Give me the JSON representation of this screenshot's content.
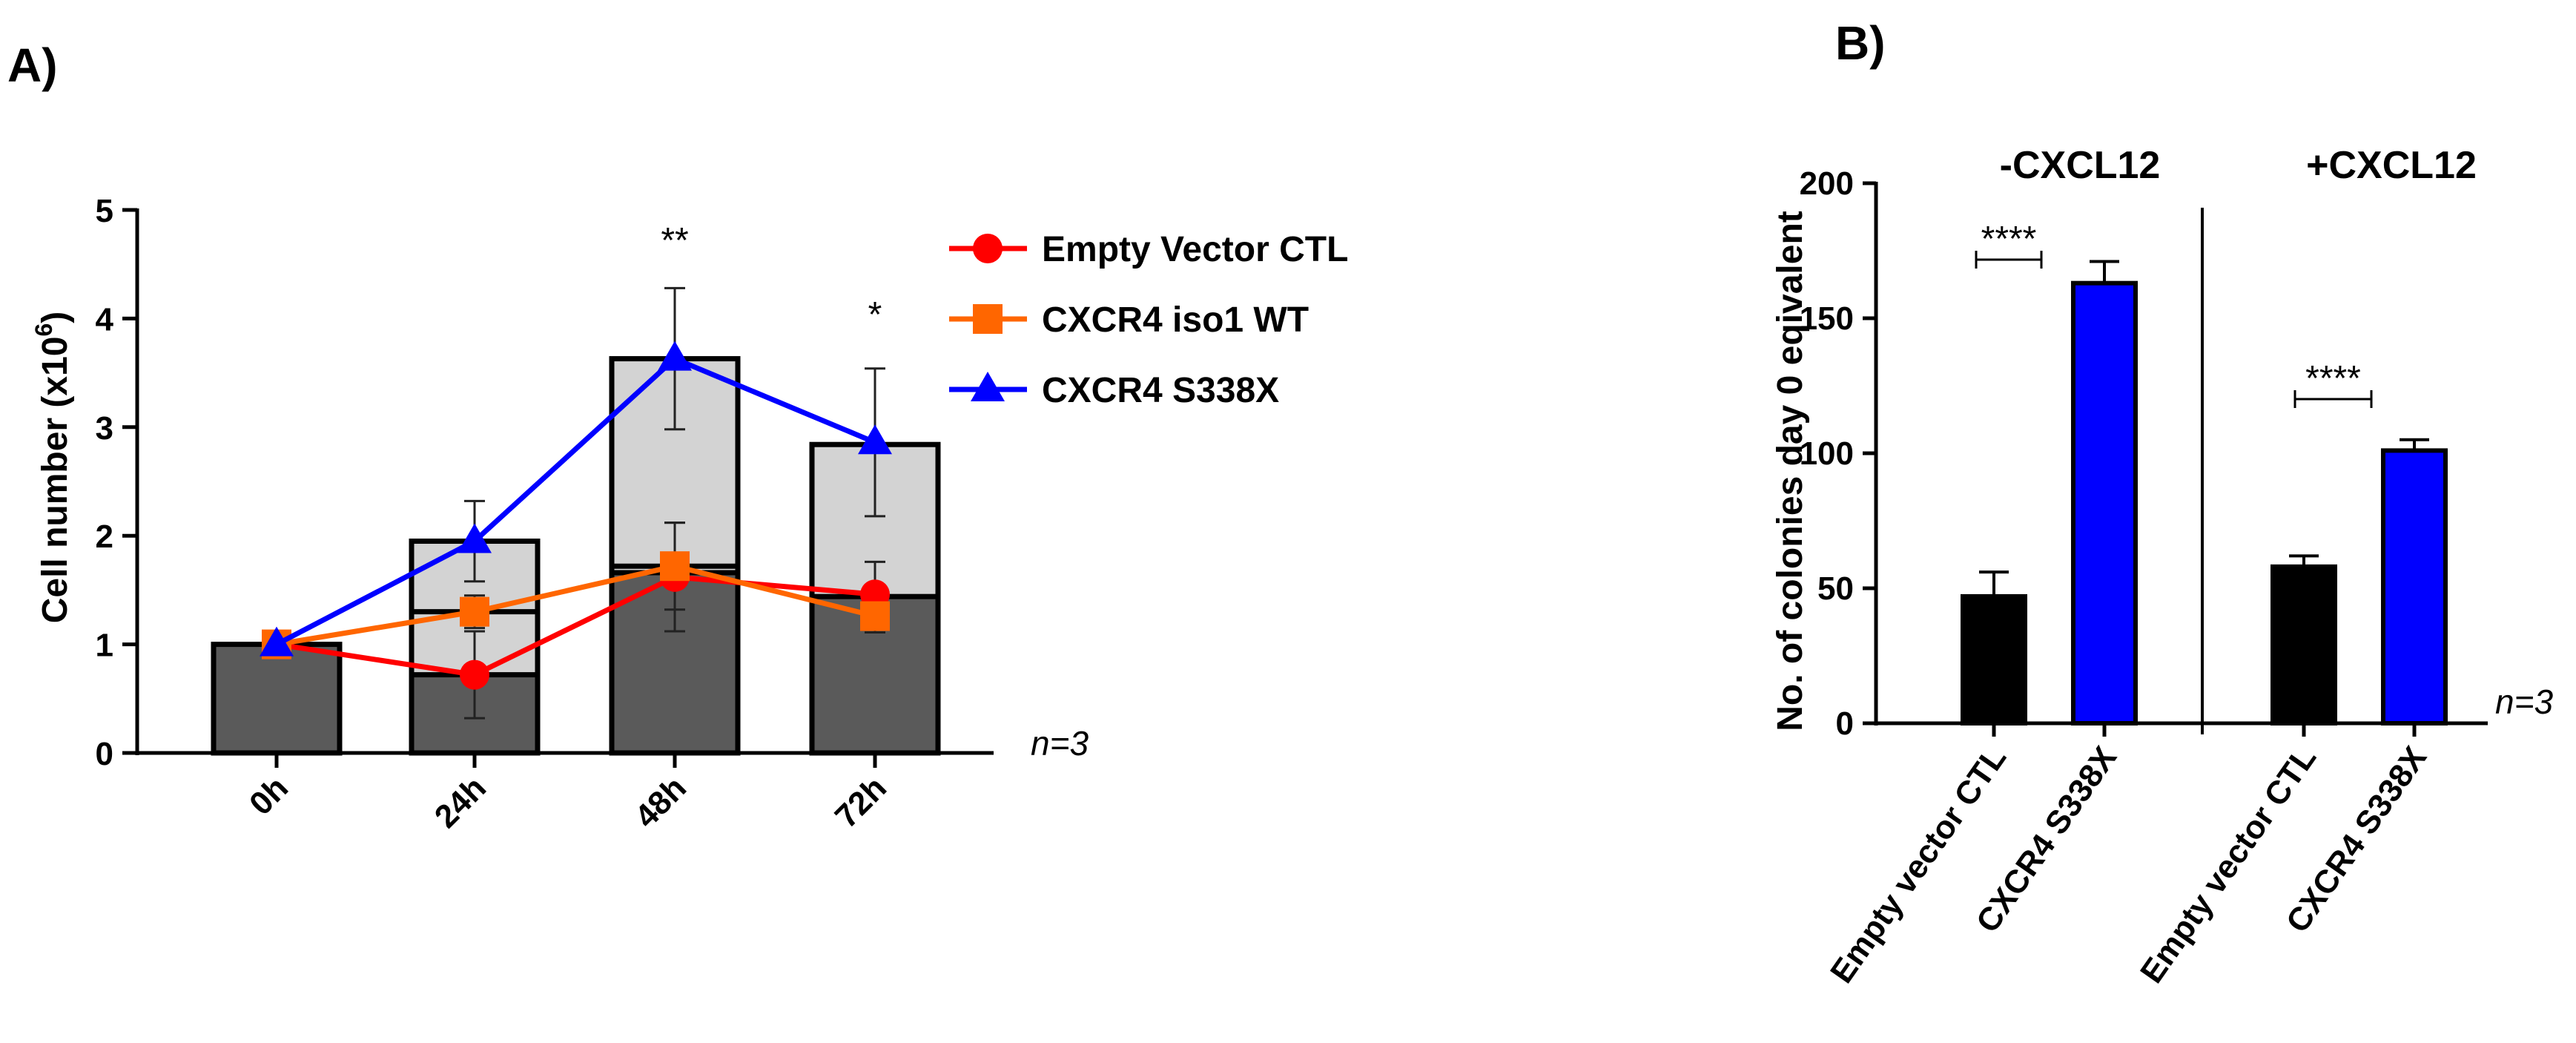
{
  "panelA": {
    "letter": "A)",
    "n_label": "n=3",
    "chart_data": {
      "type": "line",
      "title": "",
      "xlabel": "",
      "ylabel": "Cell number (x10^6)",
      "ylabel_main": "Cell number (x10",
      "ylabel_sup": "6",
      "ylabel_end": ")",
      "ylim": [
        0,
        5
      ],
      "yticks": [
        "0",
        "1",
        "2",
        "3",
        "4",
        "5"
      ],
      "categories": [
        "0h",
        "24h",
        "48h",
        "72h"
      ],
      "legend_position": "top-right",
      "series": [
        {
          "name": "Empty Vector CTL",
          "color": "#ff0000",
          "marker": "circle",
          "values": [
            1.0,
            0.72,
            1.62,
            1.46
          ],
          "errors": [
            0.0,
            0.4,
            0.5,
            0.3
          ]
        },
        {
          "name": "CXCR4 iso1 WT",
          "color": "#ff6600",
          "marker": "square",
          "values": [
            1.0,
            1.3,
            1.72,
            1.26
          ],
          "errors": [
            0.0,
            0.15,
            0.4,
            0.15
          ]
        },
        {
          "name": "CXCR4 S338X",
          "color": "#0000ff",
          "marker": "triangle",
          "values": [
            1.0,
            1.95,
            3.63,
            2.86
          ],
          "errors": [
            0.0,
            0.37,
            0.65,
            0.68
          ]
        }
      ],
      "bars": {
        "dark_color": "#5a5a5a",
        "light_color": "#d3d3d3",
        "dark_values": [
          1.0,
          0.72,
          1.66,
          1.44
        ],
        "light_values": [
          0.98,
          1.95,
          3.63,
          2.84
        ],
        "mid_lines": [
          null,
          1.3,
          1.72,
          null
        ]
      },
      "annotations": [
        {
          "category": "48h",
          "text": "**"
        },
        {
          "category": "72h",
          "text": "*"
        }
      ]
    }
  },
  "panelB": {
    "letter": "B)",
    "n_label": "n=3",
    "chart_data": {
      "type": "bar",
      "title": "",
      "xlabel": "",
      "ylabel": "No. of colonies day 0 eqivalent",
      "ylim": [
        0,
        200
      ],
      "yticks": [
        "0",
        "50",
        "100",
        "150",
        "200"
      ],
      "groups": [
        {
          "label": "-CXCL12",
          "significance": "****",
          "bars": [
            {
              "name": "Empty vector CTL",
              "value": 47,
              "error": 9,
              "color": "#000000"
            },
            {
              "name": "CXCR4 S338X",
              "value": 163,
              "error": 8,
              "color": "#0000ff"
            }
          ]
        },
        {
          "label": "+CXCL12",
          "significance": "****",
          "bars": [
            {
              "name": "Empty vector CTL",
              "value": 58,
              "error": 4,
              "color": "#000000"
            },
            {
              "name": "CXCR4 S338X",
              "value": 101,
              "error": 4,
              "color": "#0000ff"
            }
          ]
        }
      ]
    }
  }
}
